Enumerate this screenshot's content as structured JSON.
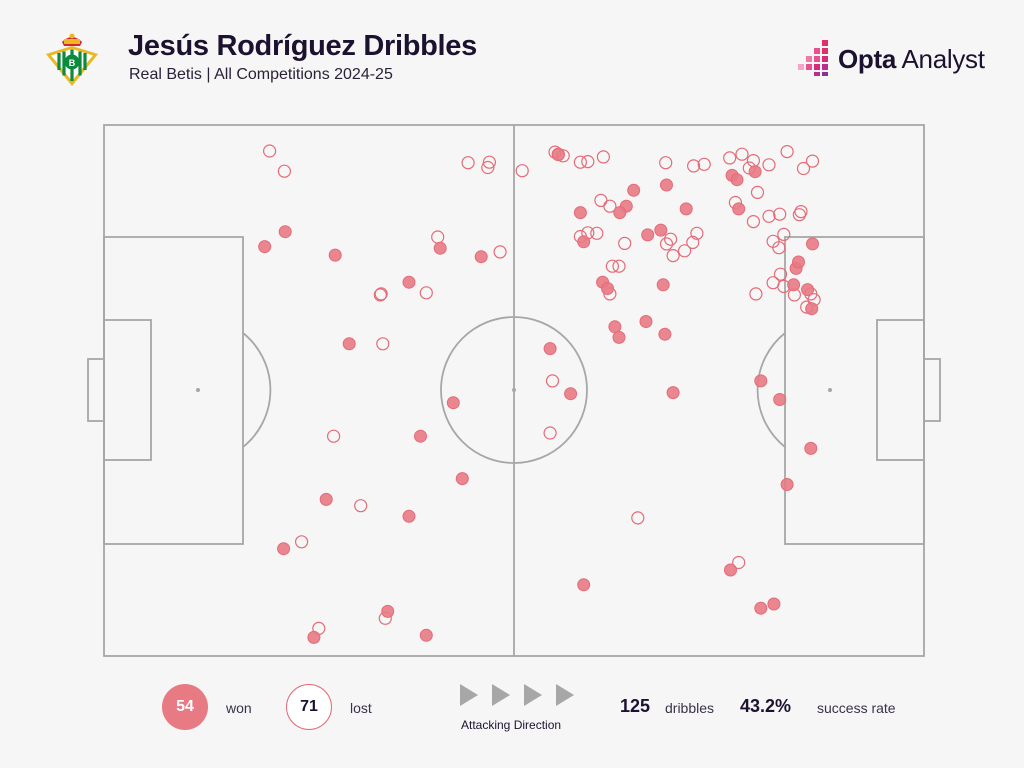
{
  "header": {
    "title": "Jesús Rodríguez Dribbles",
    "subtitle": "Real Betis | All Competitions 2024-25",
    "crest_icon": "real-betis-crest-icon"
  },
  "brand": {
    "name_bold": "Opta",
    "name_light": " Analyst",
    "icon": "opta-analyst-logo-icon"
  },
  "colors": {
    "won": "#e87a84",
    "lost_stroke": "#e46b77",
    "pitch_lines": "#a7a7a7",
    "text": "#1c1230"
  },
  "legend": {
    "won_count": "54",
    "won_label": "won",
    "lost_count": "71",
    "lost_label": "lost",
    "direction_label": "Attacking Direction",
    "direction_icon": "play-arrow-icon"
  },
  "stats": {
    "dribbles_value": "125",
    "dribbles_label": "dribbles",
    "success_value": "43.2%",
    "success_label": "success rate"
  },
  "chart_data": {
    "type": "scatter",
    "title": "Jesús Rodríguez Dribbles",
    "subtitle": "Real Betis | All Competitions 2024-25",
    "x_range": [
      0,
      100
    ],
    "y_range": [
      0,
      100
    ],
    "series": [
      {
        "name": "won",
        "points": [
          [
            22.1,
            20.1
          ],
          [
            19.6,
            22.9
          ],
          [
            28.2,
            24.5
          ],
          [
            37.2,
            29.6
          ],
          [
            41.0,
            23.2
          ],
          [
            46.0,
            24.8
          ],
          [
            29.9,
            41.2
          ],
          [
            42.6,
            52.3
          ],
          [
            38.6,
            58.6
          ],
          [
            43.7,
            66.6
          ],
          [
            25.6,
            96.5
          ],
          [
            27.1,
            70.5
          ],
          [
            37.2,
            73.7
          ],
          [
            21.9,
            79.8
          ],
          [
            34.6,
            91.6
          ],
          [
            39.3,
            96.1
          ],
          [
            55.4,
            5.6
          ],
          [
            58.1,
            16.5
          ],
          [
            68.6,
            11.3
          ],
          [
            71.0,
            15.8
          ],
          [
            68.2,
            30.1
          ],
          [
            76.6,
            9.5
          ],
          [
            79.4,
            8.8
          ],
          [
            77.2,
            10.3
          ],
          [
            67.9,
            19.8
          ],
          [
            63.7,
            15.3
          ],
          [
            64.6,
            12.3
          ],
          [
            62.9,
            16.5
          ],
          [
            66.3,
            20.7
          ],
          [
            60.8,
            29.6
          ],
          [
            58.5,
            22.0
          ],
          [
            61.4,
            30.8
          ],
          [
            62.3,
            38.0
          ],
          [
            62.8,
            40.0
          ],
          [
            66.1,
            37.0
          ],
          [
            68.4,
            39.4
          ],
          [
            54.4,
            42.1
          ],
          [
            56.9,
            50.6
          ],
          [
            69.4,
            50.4
          ],
          [
            77.4,
            15.8
          ],
          [
            86.4,
            22.4
          ],
          [
            84.4,
            27.0
          ],
          [
            84.1,
            30.1
          ],
          [
            85.8,
            31.0
          ],
          [
            84.7,
            25.8
          ],
          [
            86.3,
            34.6
          ],
          [
            82.4,
            51.7
          ],
          [
            80.1,
            48.2
          ],
          [
            86.2,
            60.9
          ],
          [
            83.3,
            67.7
          ],
          [
            80.1,
            91.0
          ],
          [
            58.5,
            86.6
          ],
          [
            81.7,
            90.2
          ],
          [
            76.4,
            83.8
          ]
        ]
      },
      {
        "name": "lost",
        "points": [
          [
            20.2,
            4.9
          ],
          [
            22.0,
            8.7
          ],
          [
            44.4,
            7.1
          ],
          [
            46.8,
            8.0
          ],
          [
            51.0,
            8.6
          ],
          [
            56.0,
            5.8
          ],
          [
            55.0,
            5.1
          ],
          [
            55.4,
            5.5
          ],
          [
            58.1,
            7.0
          ],
          [
            59.0,
            6.9
          ],
          [
            60.9,
            6.0
          ],
          [
            68.5,
            7.1
          ],
          [
            71.9,
            7.7
          ],
          [
            73.2,
            7.4
          ],
          [
            79.2,
            6.7
          ],
          [
            81.1,
            7.5
          ],
          [
            77.8,
            5.5
          ],
          [
            76.3,
            6.2
          ],
          [
            78.7,
            8.1
          ],
          [
            83.3,
            5.0
          ],
          [
            85.3,
            8.2
          ],
          [
            86.4,
            6.8
          ],
          [
            79.7,
            12.7
          ],
          [
            77.0,
            14.6
          ],
          [
            85.0,
            16.3
          ],
          [
            82.4,
            16.8
          ],
          [
            84.8,
            16.9
          ],
          [
            81.1,
            17.2
          ],
          [
            79.2,
            18.2
          ],
          [
            82.9,
            20.6
          ],
          [
            81.6,
            21.9
          ],
          [
            82.3,
            23.1
          ],
          [
            86.2,
            31.8
          ],
          [
            84.2,
            32.0
          ],
          [
            86.6,
            32.9
          ],
          [
            85.7,
            34.3
          ],
          [
            81.6,
            29.7
          ],
          [
            82.5,
            28.1
          ],
          [
            82.9,
            30.4
          ],
          [
            79.5,
            31.8
          ],
          [
            69.1,
            21.5
          ],
          [
            68.6,
            22.4
          ],
          [
            63.5,
            22.3
          ],
          [
            71.8,
            22.1
          ],
          [
            72.3,
            20.4
          ],
          [
            70.8,
            23.7
          ],
          [
            69.4,
            24.6
          ],
          [
            58.1,
            21.0
          ],
          [
            62.8,
            26.6
          ],
          [
            62.0,
            26.6
          ],
          [
            61.7,
            31.8
          ],
          [
            60.1,
            20.4
          ],
          [
            59.0,
            20.3
          ],
          [
            61.7,
            15.3
          ],
          [
            60.6,
            14.2
          ],
          [
            54.7,
            48.2
          ],
          [
            54.4,
            58.0
          ],
          [
            47.0,
            7.0
          ],
          [
            48.3,
            23.9
          ],
          [
            40.7,
            21.1
          ],
          [
            39.3,
            31.6
          ],
          [
            33.7,
            32.0
          ],
          [
            33.8,
            31.8
          ],
          [
            34.0,
            41.2
          ],
          [
            28.0,
            58.6
          ],
          [
            31.3,
            71.7
          ],
          [
            65.1,
            74.0
          ],
          [
            77.4,
            82.4
          ],
          [
            34.3,
            92.9
          ],
          [
            24.1,
            78.5
          ],
          [
            26.2,
            94.8
          ]
        ]
      }
    ]
  }
}
